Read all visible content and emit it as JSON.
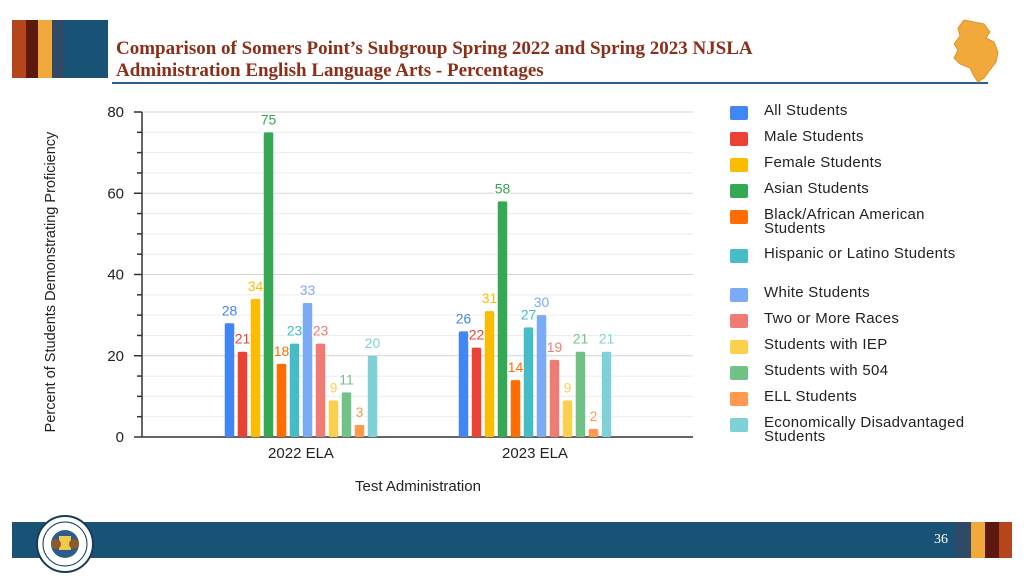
{
  "slide": {
    "title_line1": "Comparison of Somers Point’s Subgroup Spring 2022 and Spring 2023 NJSLA",
    "title_line2": "Administration English Language Arts - Percentages",
    "page_number": "36",
    "accent_stripes": [
      "#b5451b",
      "#5c1a0f",
      "#f2a93b",
      "#2e4a66",
      "#1a5276"
    ],
    "footer_stripes": [
      "#2e4a66",
      "#f2a93b",
      "#5c1a0f",
      "#b5451b"
    ],
    "footer_color": "#1a5276",
    "logo_icon": "nj-state-map-icon",
    "seal_icon": "nj-department-of-education-seal-icon"
  },
  "chart_data": {
    "type": "bar",
    "title": "",
    "xlabel": "Test Administration",
    "ylabel": "Percent of Students Demonstrating Proficiency",
    "categories": [
      "2022 ELA",
      "2023 ELA"
    ],
    "ylim": [
      0,
      80
    ],
    "yticks": [
      0,
      20,
      40,
      60,
      80
    ],
    "grid": true,
    "legend_position": "right",
    "series": [
      {
        "name": "All Students",
        "color": "#4285F4",
        "values": [
          28,
          26
        ]
      },
      {
        "name": "Male Students",
        "color": "#EA4335",
        "values": [
          21,
          22
        ]
      },
      {
        "name": "Female Students",
        "color": "#FBBC04",
        "values": [
          34,
          31
        ]
      },
      {
        "name": "Asian Students",
        "color": "#34A853",
        "values": [
          75,
          58
        ]
      },
      {
        "name": "Black/African American Students",
        "color": "#FF6D01",
        "values": [
          18,
          14
        ]
      },
      {
        "name": "Hispanic or Latino Students",
        "color": "#46BDC6",
        "values": [
          23,
          27
        ]
      },
      {
        "name": "White Students",
        "color": "#7BAAF7",
        "values": [
          33,
          30
        ]
      },
      {
        "name": "Two or More Races",
        "color": "#F07B72",
        "values": [
          23,
          19
        ]
      },
      {
        "name": "Students with IEP",
        "color": "#FCD04F",
        "values": [
          9,
          9
        ]
      },
      {
        "name": "Students with 504",
        "color": "#71C287",
        "values": [
          11,
          21
        ]
      },
      {
        "name": "ELL Students",
        "color": "#FF994D",
        "values": [
          3,
          2
        ]
      },
      {
        "name": "Economically Disadvantaged Students",
        "color": "#7ED1D7",
        "values": [
          20,
          21
        ]
      }
    ]
  }
}
